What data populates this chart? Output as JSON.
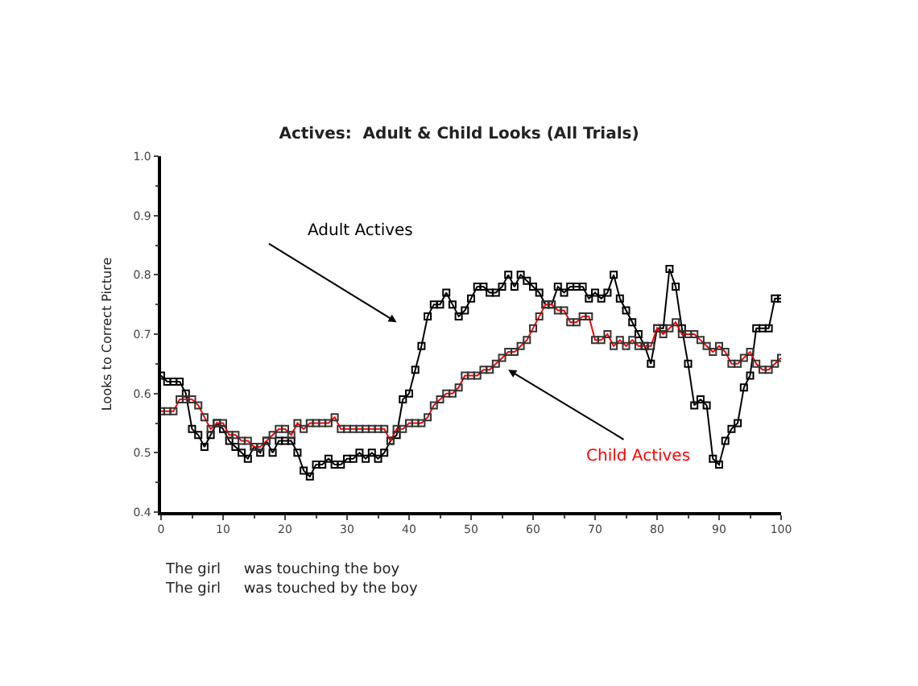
{
  "chart_data": {
    "type": "line",
    "title": "Actives:  Adult & Child Looks (All Trials)",
    "ylabel": "Looks to Correct Picture",
    "x": [
      0,
      1,
      2,
      3,
      4,
      5,
      6,
      7,
      8,
      9,
      10,
      11,
      12,
      13,
      14,
      15,
      16,
      17,
      18,
      19,
      20,
      21,
      22,
      23,
      24,
      25,
      26,
      27,
      28,
      29,
      30,
      31,
      32,
      33,
      34,
      35,
      36,
      37,
      38,
      39,
      40,
      41,
      42,
      43,
      44,
      45,
      46,
      47,
      48,
      49,
      50,
      51,
      52,
      53,
      54,
      55,
      56,
      57,
      58,
      59,
      60,
      61,
      62,
      63,
      64,
      65,
      66,
      67,
      68,
      69,
      70,
      71,
      72,
      73,
      74,
      75,
      76,
      77,
      78,
      79,
      80,
      81,
      82,
      83,
      84,
      85,
      86,
      87,
      88,
      89,
      90,
      91,
      92,
      93,
      94,
      95,
      96,
      97,
      98,
      99,
      100
    ],
    "series": [
      {
        "name": "Adult Actives",
        "color": "#000000",
        "values": [
          0.63,
          0.62,
          0.62,
          0.62,
          0.6,
          0.54,
          0.53,
          0.51,
          0.53,
          0.55,
          0.54,
          0.52,
          0.51,
          0.5,
          0.49,
          0.51,
          0.5,
          0.52,
          0.5,
          0.52,
          0.52,
          0.52,
          0.5,
          0.47,
          0.46,
          0.48,
          0.48,
          0.49,
          0.48,
          0.48,
          0.49,
          0.49,
          0.5,
          0.49,
          0.5,
          0.49,
          0.5,
          0.52,
          0.53,
          0.59,
          0.6,
          0.64,
          0.68,
          0.73,
          0.75,
          0.75,
          0.77,
          0.75,
          0.73,
          0.74,
          0.76,
          0.78,
          0.78,
          0.77,
          0.77,
          0.78,
          0.8,
          0.78,
          0.8,
          0.79,
          0.78,
          0.77,
          0.75,
          0.75,
          0.78,
          0.77,
          0.78,
          0.78,
          0.78,
          0.76,
          0.77,
          0.76,
          0.77,
          0.8,
          0.76,
          0.74,
          0.72,
          0.7,
          0.68,
          0.65,
          0.71,
          0.71,
          0.81,
          0.78,
          0.71,
          0.65,
          0.58,
          0.59,
          0.58,
          0.49,
          0.48,
          0.52,
          0.54,
          0.55,
          0.61,
          0.63,
          0.71,
          0.71,
          0.71,
          0.76,
          0.76
        ]
      },
      {
        "name": "Child Actives",
        "color": "#ff0000",
        "values": [
          0.57,
          0.57,
          0.57,
          0.59,
          0.59,
          0.59,
          0.58,
          0.56,
          0.54,
          0.55,
          0.55,
          0.53,
          0.53,
          0.52,
          0.52,
          0.51,
          0.51,
          0.52,
          0.53,
          0.54,
          0.54,
          0.53,
          0.55,
          0.54,
          0.55,
          0.55,
          0.55,
          0.55,
          0.56,
          0.54,
          0.54,
          0.54,
          0.54,
          0.54,
          0.54,
          0.54,
          0.54,
          0.52,
          0.54,
          0.54,
          0.55,
          0.55,
          0.55,
          0.56,
          0.58,
          0.59,
          0.6,
          0.6,
          0.61,
          0.63,
          0.63,
          0.63,
          0.64,
          0.64,
          0.65,
          0.66,
          0.67,
          0.67,
          0.68,
          0.69,
          0.71,
          0.73,
          0.75,
          0.75,
          0.74,
          0.74,
          0.72,
          0.72,
          0.73,
          0.73,
          0.69,
          0.69,
          0.7,
          0.68,
          0.69,
          0.68,
          0.69,
          0.68,
          0.68,
          0.68,
          0.71,
          0.7,
          0.71,
          0.72,
          0.7,
          0.7,
          0.7,
          0.69,
          0.68,
          0.67,
          0.68,
          0.67,
          0.65,
          0.65,
          0.66,
          0.67,
          0.65,
          0.64,
          0.64,
          0.65,
          0.66
        ]
      }
    ],
    "xlim": [
      0,
      100
    ],
    "xticks": [
      0,
      10,
      20,
      30,
      40,
      50,
      60,
      70,
      80,
      90,
      100
    ],
    "ylim": [
      0.4,
      1.0
    ],
    "yticks": [
      {
        "value": 0.4,
        "label": "0.4"
      },
      {
        "value": 0.5,
        "label": "0.5"
      },
      {
        "value": 0.6,
        "label": "0.6"
      },
      {
        "value": 0.7,
        "label": "0.7"
      },
      {
        "value": 0.8,
        "label": "0.8"
      },
      {
        "value": 0.9,
        "label": "0.9"
      },
      {
        "value": 1.0,
        "label": "1.0"
      }
    ],
    "marker": "square",
    "legend": false,
    "annotations": [
      "The girl     was touching the boy",
      "The girl     was touched by the boy"
    ]
  }
}
